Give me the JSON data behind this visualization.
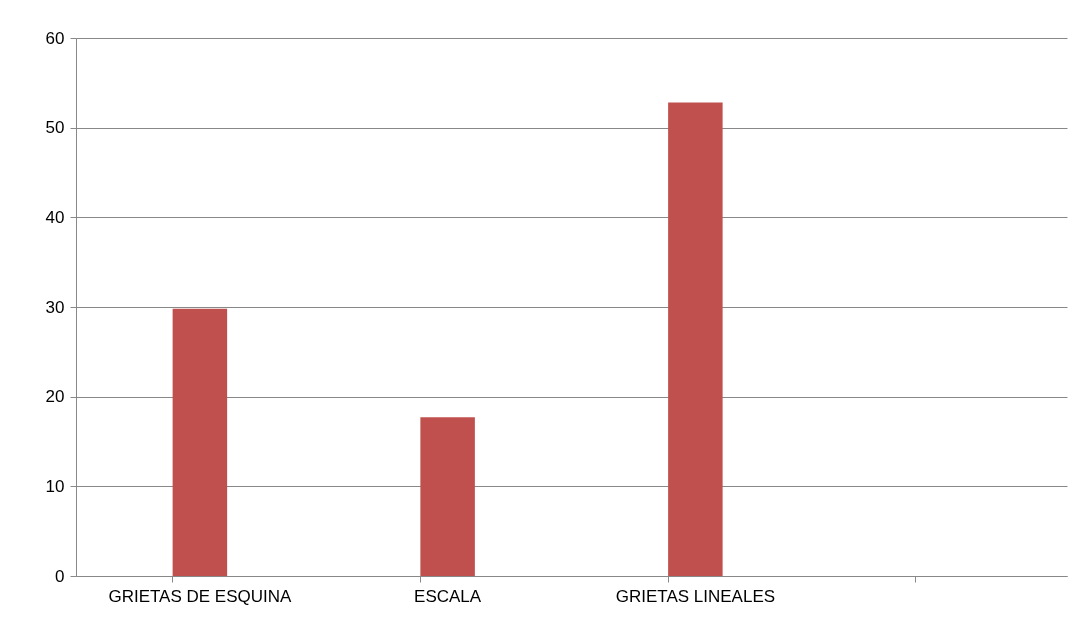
{
  "chart_data": {
    "type": "bar",
    "categories": [
      "GRIETAS DE ESQUINA",
      "ESCALA",
      "GRIETAS LINEALES",
      null
    ],
    "values": [
      29.8,
      17.7,
      52.8,
      null
    ],
    "color": "#c0504d",
    "ylim": [
      0,
      60
    ],
    "yticks": [
      0,
      10,
      20,
      30,
      40,
      50,
      60
    ],
    "grid": "y"
  }
}
